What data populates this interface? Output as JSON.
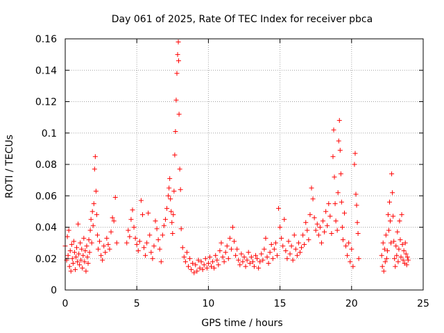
{
  "chart_data": {
    "type": "scatter",
    "title": "Day 061 of 2025, Rate Of TEC Index for receiver pbca",
    "xlabel": "GPS time / hours",
    "ylabel": "ROTI / TECUs",
    "xlim": [
      0,
      25
    ],
    "ylim": [
      0,
      0.16
    ],
    "x_ticks": [
      0,
      5,
      10,
      15,
      20,
      25
    ],
    "x_tick_labels": [
      "0",
      "5",
      "10",
      "15",
      "20",
      "25"
    ],
    "y_ticks": [
      0,
      0.02,
      0.04,
      0.06,
      0.08,
      0.1,
      0.12,
      0.14,
      0.16
    ],
    "y_tick_labels": [
      "0",
      "0.02",
      "0.04",
      "0.06",
      "0.08",
      "0.1",
      "0.12",
      "0.14",
      "0.16"
    ],
    "grid": true,
    "marker": "+",
    "series": [
      {
        "name": "pbca",
        "color": "#ff0000",
        "points": [
          [
            0.0,
            0.028
          ],
          [
            0.1,
            0.019
          ],
          [
            0.15,
            0.034
          ],
          [
            0.2,
            0.022
          ],
          [
            0.25,
            0.038
          ],
          [
            0.3,
            0.015
          ],
          [
            0.35,
            0.025
          ],
          [
            0.4,
            0.012
          ],
          [
            0.45,
            0.029
          ],
          [
            0.5,
            0.02
          ],
          [
            0.55,
            0.017
          ],
          [
            0.6,
            0.031
          ],
          [
            0.65,
            0.024
          ],
          [
            0.7,
            0.013
          ],
          [
            0.75,
            0.021
          ],
          [
            0.8,
            0.027
          ],
          [
            0.85,
            0.018
          ],
          [
            0.9,
            0.042
          ],
          [
            0.95,
            0.023
          ],
          [
            1.0,
            0.016
          ],
          [
            1.05,
            0.03
          ],
          [
            1.1,
            0.019
          ],
          [
            1.15,
            0.026
          ],
          [
            1.2,
            0.014
          ],
          [
            1.25,
            0.022
          ],
          [
            1.3,
            0.033
          ],
          [
            1.35,
            0.018
          ],
          [
            1.4,
            0.025
          ],
          [
            1.45,
            0.012
          ],
          [
            1.5,
            0.028
          ],
          [
            1.55,
            0.021
          ],
          [
            1.6,
            0.017
          ],
          [
            1.65,
            0.032
          ],
          [
            1.7,
            0.024
          ],
          [
            1.75,
            0.038
          ],
          [
            1.8,
            0.045
          ],
          [
            1.85,
            0.03
          ],
          [
            1.9,
            0.05
          ],
          [
            1.95,
            0.041
          ],
          [
            2.0,
            0.055
          ],
          [
            2.05,
            0.077
          ],
          [
            2.1,
            0.085
          ],
          [
            2.15,
            0.063
          ],
          [
            2.2,
            0.048
          ],
          [
            2.25,
            0.035
          ],
          [
            2.3,
            0.026
          ],
          [
            2.4,
            0.031
          ],
          [
            2.5,
            0.022
          ],
          [
            2.6,
            0.019
          ],
          [
            2.7,
            0.028
          ],
          [
            2.8,
            0.024
          ],
          [
            2.9,
            0.033
          ],
          [
            3.0,
            0.029
          ],
          [
            3.1,
            0.026
          ],
          [
            3.2,
            0.037
          ],
          [
            3.3,
            0.046
          ],
          [
            3.4,
            0.044
          ],
          [
            3.5,
            0.059
          ],
          [
            3.6,
            0.03
          ],
          [
            4.3,
            0.03
          ],
          [
            4.4,
            0.038
          ],
          [
            4.5,
            0.034
          ],
          [
            4.6,
            0.045
          ],
          [
            4.7,
            0.051
          ],
          [
            4.8,
            0.04
          ],
          [
            4.9,
            0.033
          ],
          [
            5.0,
            0.029
          ],
          [
            5.1,
            0.025
          ],
          [
            5.2,
            0.031
          ],
          [
            5.3,
            0.057
          ],
          [
            5.4,
            0.048
          ],
          [
            5.5,
            0.027
          ],
          [
            5.6,
            0.022
          ],
          [
            5.7,
            0.03
          ],
          [
            5.8,
            0.049
          ],
          [
            5.9,
            0.035
          ],
          [
            6.0,
            0.024
          ],
          [
            6.1,
            0.02
          ],
          [
            6.2,
            0.028
          ],
          [
            6.3,
            0.044
          ],
          [
            6.4,
            0.039
          ],
          [
            6.5,
            0.032
          ],
          [
            6.6,
            0.026
          ],
          [
            6.7,
            0.018
          ],
          [
            6.8,
            0.035
          ],
          [
            6.9,
            0.041
          ],
          [
            7.0,
            0.045
          ],
          [
            7.1,
            0.052
          ],
          [
            7.2,
            0.06
          ],
          [
            7.25,
            0.065
          ],
          [
            7.3,
            0.071
          ],
          [
            7.35,
            0.058
          ],
          [
            7.4,
            0.05
          ],
          [
            7.45,
            0.043
          ],
          [
            7.5,
            0.036
          ],
          [
            7.55,
            0.048
          ],
          [
            7.6,
            0.063
          ],
          [
            7.65,
            0.086
          ],
          [
            7.7,
            0.101
          ],
          [
            7.75,
            0.121
          ],
          [
            7.8,
            0.138
          ],
          [
            7.85,
            0.15
          ],
          [
            7.9,
            0.158
          ],
          [
            7.92,
            0.146
          ],
          [
            7.95,
            0.112
          ],
          [
            8.0,
            0.077
          ],
          [
            8.05,
            0.064
          ],
          [
            8.1,
            0.039
          ],
          [
            8.2,
            0.027
          ],
          [
            8.3,
            0.021
          ],
          [
            8.4,
            0.018
          ],
          [
            8.5,
            0.024
          ],
          [
            8.6,
            0.015
          ],
          [
            8.7,
            0.02
          ],
          [
            8.8,
            0.013
          ],
          [
            8.9,
            0.017
          ],
          [
            9.0,
            0.011
          ],
          [
            9.1,
            0.016
          ],
          [
            9.2,
            0.012
          ],
          [
            9.3,
            0.019
          ],
          [
            9.4,
            0.014
          ],
          [
            9.5,
            0.018
          ],
          [
            9.6,
            0.013
          ],
          [
            9.7,
            0.016
          ],
          [
            9.8,
            0.02
          ],
          [
            9.9,
            0.014
          ],
          [
            10.0,
            0.017
          ],
          [
            10.1,
            0.021
          ],
          [
            10.2,
            0.015
          ],
          [
            10.3,
            0.018
          ],
          [
            10.4,
            0.014
          ],
          [
            10.5,
            0.022
          ],
          [
            10.6,
            0.019
          ],
          [
            10.7,
            0.016
          ],
          [
            10.8,
            0.025
          ],
          [
            10.9,
            0.03
          ],
          [
            11.0,
            0.021
          ],
          [
            11.1,
            0.018
          ],
          [
            11.2,
            0.024
          ],
          [
            11.3,
            0.028
          ],
          [
            11.4,
            0.02
          ],
          [
            11.5,
            0.033
          ],
          [
            11.6,
            0.026
          ],
          [
            11.7,
            0.04
          ],
          [
            11.8,
            0.031
          ],
          [
            11.9,
            0.022
          ],
          [
            12.0,
            0.026
          ],
          [
            12.1,
            0.019
          ],
          [
            12.2,
            0.016
          ],
          [
            12.3,
            0.023
          ],
          [
            12.4,
            0.018
          ],
          [
            12.5,
            0.021
          ],
          [
            12.6,
            0.015
          ],
          [
            12.7,
            0.019
          ],
          [
            12.8,
            0.024
          ],
          [
            12.9,
            0.017
          ],
          [
            13.0,
            0.021
          ],
          [
            13.1,
            0.018
          ],
          [
            13.2,
            0.015
          ],
          [
            13.3,
            0.022
          ],
          [
            13.4,
            0.02
          ],
          [
            13.5,
            0.014
          ],
          [
            13.6,
            0.018
          ],
          [
            13.7,
            0.023
          ],
          [
            13.8,
            0.019
          ],
          [
            13.9,
            0.026
          ],
          [
            14.0,
            0.033
          ],
          [
            14.1,
            0.021
          ],
          [
            14.2,
            0.017
          ],
          [
            14.3,
            0.024
          ],
          [
            14.4,
            0.029
          ],
          [
            14.5,
            0.02
          ],
          [
            14.6,
            0.026
          ],
          [
            14.7,
            0.03
          ],
          [
            14.8,
            0.022
          ],
          [
            14.9,
            0.052
          ],
          [
            15.0,
            0.04
          ],
          [
            15.1,
            0.033
          ],
          [
            15.2,
            0.028
          ],
          [
            15.3,
            0.045
          ],
          [
            15.4,
            0.025
          ],
          [
            15.5,
            0.02
          ],
          [
            15.6,
            0.031
          ],
          [
            15.7,
            0.023
          ],
          [
            15.8,
            0.028
          ],
          [
            15.9,
            0.019
          ],
          [
            16.0,
            0.035
          ],
          [
            16.1,
            0.026
          ],
          [
            16.2,
            0.022
          ],
          [
            16.3,
            0.03
          ],
          [
            16.4,
            0.024
          ],
          [
            16.5,
            0.027
          ],
          [
            16.6,
            0.035
          ],
          [
            16.7,
            0.029
          ],
          [
            16.8,
            0.043
          ],
          [
            16.9,
            0.038
          ],
          [
            17.0,
            0.032
          ],
          [
            17.1,
            0.048
          ],
          [
            17.2,
            0.065
          ],
          [
            17.3,
            0.058
          ],
          [
            17.4,
            0.046
          ],
          [
            17.5,
            0.038
          ],
          [
            17.6,
            0.042
          ],
          [
            17.7,
            0.035
          ],
          [
            17.8,
            0.04
          ],
          [
            17.9,
            0.03
          ],
          [
            18.0,
            0.044
          ],
          [
            18.1,
            0.037
          ],
          [
            18.2,
            0.05
          ],
          [
            18.3,
            0.041
          ],
          [
            18.4,
            0.055
          ],
          [
            18.5,
            0.047
          ],
          [
            18.6,
            0.036
          ],
          [
            18.7,
            0.085
          ],
          [
            18.75,
            0.102
          ],
          [
            18.8,
            0.072
          ],
          [
            18.85,
            0.055
          ],
          [
            18.9,
            0.044
          ],
          [
            19.0,
            0.038
          ],
          [
            19.05,
            0.062
          ],
          [
            19.1,
            0.095
          ],
          [
            19.15,
            0.108
          ],
          [
            19.2,
            0.089
          ],
          [
            19.25,
            0.074
          ],
          [
            19.3,
            0.056
          ],
          [
            19.35,
            0.04
          ],
          [
            19.4,
            0.032
          ],
          [
            19.5,
            0.049
          ],
          [
            19.6,
            0.028
          ],
          [
            19.7,
            0.022
          ],
          [
            19.8,
            0.03
          ],
          [
            19.9,
            0.018
          ],
          [
            20.0,
            0.026
          ],
          [
            20.1,
            0.015
          ],
          [
            20.2,
            0.08
          ],
          [
            20.25,
            0.087
          ],
          [
            20.3,
            0.061
          ],
          [
            20.35,
            0.054
          ],
          [
            20.4,
            0.043
          ],
          [
            20.45,
            0.036
          ],
          [
            20.5,
            0.02
          ],
          [
            22.1,
            0.022
          ],
          [
            22.15,
            0.015
          ],
          [
            22.2,
            0.03
          ],
          [
            22.25,
            0.012
          ],
          [
            22.3,
            0.026
          ],
          [
            22.35,
            0.018
          ],
          [
            22.4,
            0.035
          ],
          [
            22.45,
            0.02
          ],
          [
            22.5,
            0.025
          ],
          [
            22.55,
            0.048
          ],
          [
            22.6,
            0.038
          ],
          [
            22.65,
            0.056
          ],
          [
            22.7,
            0.044
          ],
          [
            22.75,
            0.03
          ],
          [
            22.8,
            0.074
          ],
          [
            22.85,
            0.062
          ],
          [
            22.9,
            0.047
          ],
          [
            22.95,
            0.031
          ],
          [
            23.0,
            0.02
          ],
          [
            23.05,
            0.015
          ],
          [
            23.1,
            0.028
          ],
          [
            23.15,
            0.022
          ],
          [
            23.2,
            0.037
          ],
          [
            23.25,
            0.018
          ],
          [
            23.3,
            0.026
          ],
          [
            23.35,
            0.044
          ],
          [
            23.4,
            0.032
          ],
          [
            23.45,
            0.021
          ],
          [
            23.5,
            0.048
          ],
          [
            23.55,
            0.029
          ],
          [
            23.6,
            0.019
          ],
          [
            23.65,
            0.025
          ],
          [
            23.7,
            0.017
          ],
          [
            23.75,
            0.03
          ],
          [
            23.8,
            0.023
          ],
          [
            23.85,
            0.016
          ],
          [
            23.9,
            0.021
          ],
          [
            23.95,
            0.019
          ]
        ]
      }
    ]
  }
}
